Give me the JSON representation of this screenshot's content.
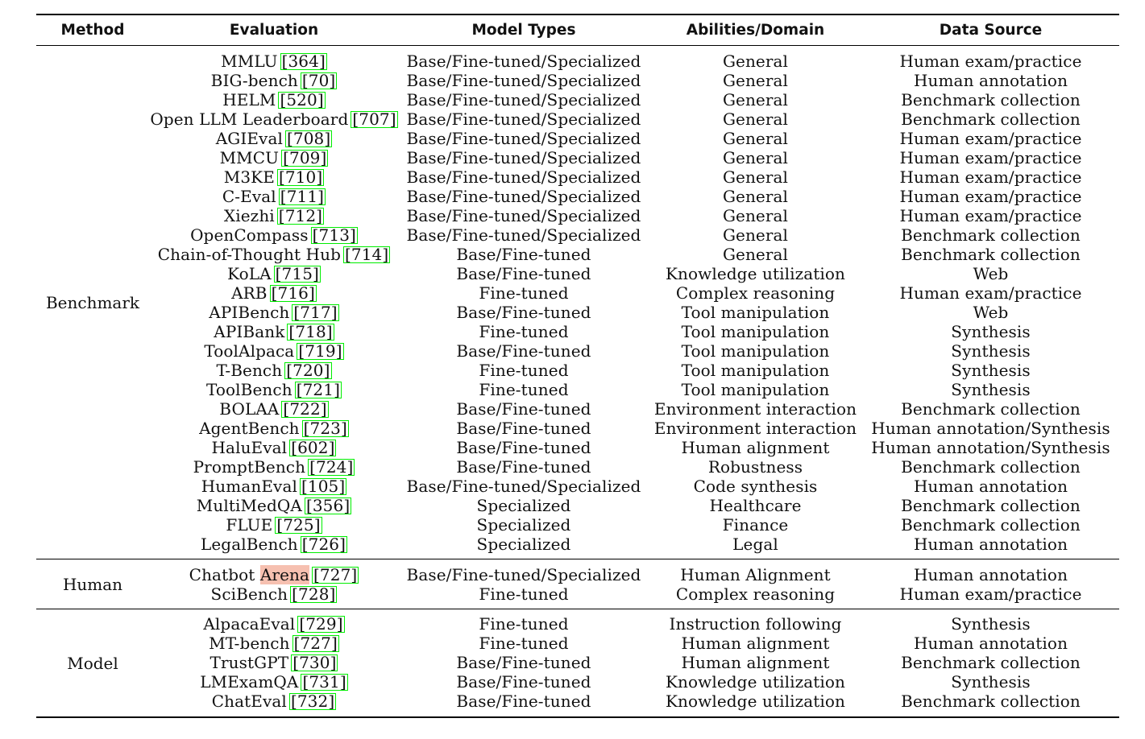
{
  "header": {
    "method": "Method",
    "evaluation": "Evaluation",
    "model_types": "Model Types",
    "abilities": "Abilities/Domain",
    "data_source": "Data Source"
  },
  "groups": [
    {
      "method": "Benchmark",
      "rows": [
        {
          "name": "MMLU",
          "cite": "364",
          "model": "Base/Fine-tuned/Specialized",
          "ability": "General",
          "source": "Human exam/practice"
        },
        {
          "name": "BIG-bench",
          "cite": "70",
          "model": "Base/Fine-tuned/Specialized",
          "ability": "General",
          "source": "Human annotation"
        },
        {
          "name": "HELM",
          "cite": "520",
          "model": "Base/Fine-tuned/Specialized",
          "ability": "General",
          "source": "Benchmark collection"
        },
        {
          "name": "Open LLM Leaderboard",
          "cite": "707",
          "model": "Base/Fine-tuned/Specialized",
          "ability": "General",
          "source": "Benchmark collection"
        },
        {
          "name": "AGIEval",
          "cite": "708",
          "model": "Base/Fine-tuned/Specialized",
          "ability": "General",
          "source": "Human exam/practice"
        },
        {
          "name": "MMCU",
          "cite": "709",
          "model": "Base/Fine-tuned/Specialized",
          "ability": "General",
          "source": "Human exam/practice"
        },
        {
          "name": "M3KE",
          "cite": "710",
          "model": "Base/Fine-tuned/Specialized",
          "ability": "General",
          "source": "Human exam/practice"
        },
        {
          "name": "C-Eval",
          "cite": "711",
          "model": "Base/Fine-tuned/Specialized",
          "ability": "General",
          "source": "Human exam/practice"
        },
        {
          "name": "Xiezhi",
          "cite": "712",
          "model": "Base/Fine-tuned/Specialized",
          "ability": "General",
          "source": "Human exam/practice"
        },
        {
          "name": "OpenCompass",
          "cite": "713",
          "model": "Base/Fine-tuned/Specialized",
          "ability": "General",
          "source": "Benchmark collection"
        },
        {
          "name": "Chain-of-Thought Hub",
          "cite": "714",
          "model": "Base/Fine-tuned",
          "ability": "General",
          "source": "Benchmark collection"
        },
        {
          "name": "KoLA",
          "cite": "715",
          "model": "Base/Fine-tuned",
          "ability": "Knowledge utilization",
          "source": "Web"
        },
        {
          "name": "ARB",
          "cite": "716",
          "model": "Fine-tuned",
          "ability": "Complex reasoning",
          "source": "Human exam/practice"
        },
        {
          "name": "APIBench",
          "cite": "717",
          "model": "Base/Fine-tuned",
          "ability": "Tool manipulation",
          "source": "Web"
        },
        {
          "name": "APIBank",
          "cite": "718",
          "model": "Fine-tuned",
          "ability": "Tool manipulation",
          "source": "Synthesis"
        },
        {
          "name": "ToolAlpaca",
          "cite": "719",
          "model": "Base/Fine-tuned",
          "ability": "Tool manipulation",
          "source": "Synthesis"
        },
        {
          "name": "T-Bench",
          "cite": "720",
          "model": "Fine-tuned",
          "ability": "Tool manipulation",
          "source": "Synthesis"
        },
        {
          "name": "ToolBench",
          "cite": "721",
          "model": "Fine-tuned",
          "ability": "Tool manipulation",
          "source": "Synthesis"
        },
        {
          "name": "BOLAA",
          "cite": "722",
          "model": "Base/Fine-tuned",
          "ability": "Environment interaction",
          "source": "Benchmark collection"
        },
        {
          "name": "AgentBench",
          "cite": "723",
          "model": "Base/Fine-tuned",
          "ability": "Environment interaction",
          "source": "Human annotation/Synthesis"
        },
        {
          "name": "HaluEval",
          "cite": "602",
          "model": "Base/Fine-tuned",
          "ability": "Human alignment",
          "source": "Human annotation/Synthesis"
        },
        {
          "name": "PromptBench",
          "cite": "724",
          "model": "Base/Fine-tuned",
          "ability": "Robustness",
          "source": "Benchmark collection"
        },
        {
          "name": "HumanEval",
          "cite": "105",
          "model": "Base/Fine-tuned/Specialized",
          "ability": "Code synthesis",
          "source": "Human annotation"
        },
        {
          "name": "MultiMedQA",
          "cite": "356",
          "model": "Specialized",
          "ability": "Healthcare",
          "source": "Benchmark collection"
        },
        {
          "name": "FLUE",
          "cite": "725",
          "model": "Specialized",
          "ability": "Finance",
          "source": "Benchmark collection"
        },
        {
          "name": "LegalBench",
          "cite": "726",
          "model": "Specialized",
          "ability": "Legal",
          "source": "Human annotation"
        }
      ]
    },
    {
      "method": "Human",
      "rows": [
        {
          "name": "Chatbot",
          "highlight": "Arena",
          "cite": "727",
          "model": "Base/Fine-tuned/Specialized",
          "ability": "Human Alignment",
          "source": "Human annotation"
        },
        {
          "name": "SciBench",
          "cite": "728",
          "model": "Fine-tuned",
          "ability": "Complex reasoning",
          "source": "Human exam/practice"
        }
      ]
    },
    {
      "method": "Model",
      "rows": [
        {
          "name": "AlpacaEval",
          "cite": "729",
          "model": "Fine-tuned",
          "ability": "Instruction following",
          "source": "Synthesis"
        },
        {
          "name": "MT-bench",
          "cite": "727",
          "model": "Fine-tuned",
          "ability": "Human alignment",
          "source": "Human annotation"
        },
        {
          "name": "TrustGPT",
          "cite": "730",
          "model": "Base/Fine-tuned",
          "ability": "Human alignment",
          "source": "Benchmark collection"
        },
        {
          "name": "LMExamQA",
          "cite": "731",
          "model": "Base/Fine-tuned",
          "ability": "Knowledge utilization",
          "source": "Synthesis"
        },
        {
          "name": "ChatEval",
          "cite": "732",
          "model": "Base/Fine-tuned",
          "ability": "Knowledge utilization",
          "source": "Benchmark collection"
        }
      ]
    }
  ],
  "colors": {
    "citation_border": "#00ee00",
    "highlight": "#f6c0b0",
    "rule": "#000000"
  }
}
